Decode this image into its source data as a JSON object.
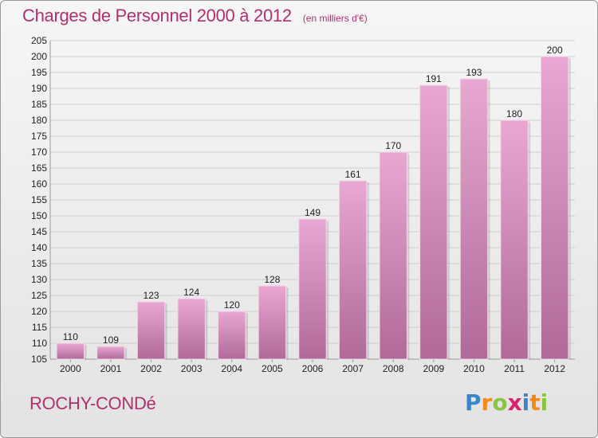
{
  "title": "Charges de Personnel 2000 à 2012",
  "subtitle": "(en milliers d'€)",
  "town": "ROCHY-CONDé",
  "logo": {
    "text": "Proxiti",
    "letters": [
      {
        "ch": "P",
        "color": "#3a86c8"
      },
      {
        "ch": "r",
        "color": "#f28a1c"
      },
      {
        "ch": "o",
        "color": "#8ac440"
      },
      {
        "ch": "x",
        "color": "#d7256b"
      },
      {
        "ch": "i",
        "color": "#3a86c8"
      },
      {
        "ch": "t",
        "color": "#f28a1c"
      },
      {
        "ch": "i",
        "color": "#8ac440"
      }
    ]
  },
  "colors": {
    "bar_top": "#e8a8d2",
    "bar_bottom": "#b06a98",
    "bar_edge": "#f6d6ea",
    "grid": "#cfcfcf",
    "axis_text": "#222222"
  },
  "chart_data": {
    "type": "bar",
    "title": "Charges de Personnel 2000 à 2012",
    "subtitle": "(en milliers d'€)",
    "categories": [
      "2000",
      "2001",
      "2002",
      "2003",
      "2004",
      "2005",
      "2006",
      "2007",
      "2008",
      "2009",
      "2010",
      "2011",
      "2012"
    ],
    "values": [
      110,
      109,
      123,
      124,
      120,
      128,
      149,
      161,
      170,
      191,
      193,
      180,
      200
    ],
    "ylim": [
      105,
      205
    ],
    "yticks": [
      105,
      110,
      115,
      120,
      125,
      130,
      135,
      140,
      145,
      150,
      155,
      160,
      165,
      170,
      175,
      180,
      185,
      190,
      195,
      200,
      205
    ],
    "grid": true,
    "data_labels": true
  }
}
